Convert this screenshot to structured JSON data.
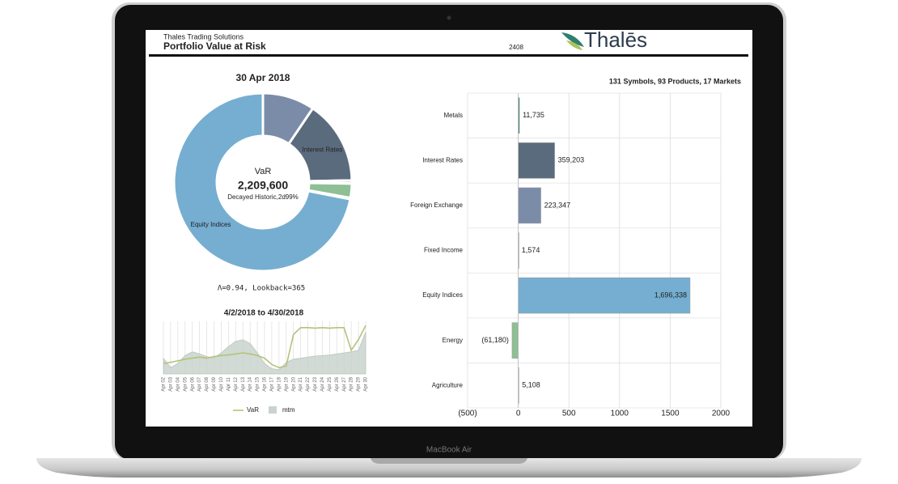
{
  "header": {
    "company": "Thales Trading Solutions",
    "title": "Portfolio Value at Risk",
    "code": "2408",
    "logo": "Thalēs"
  },
  "device_label": "MacBook Air",
  "chart_data": [
    {
      "type": "pie",
      "title": "30 Apr 2018",
      "center_label": "VaR",
      "center_value": "2,209,600",
      "center_note": "Decayed Historic,2d99%",
      "note": "Λ=0.94, Lookback=365",
      "categories": [
        null,
        "Interest Rates",
        null,
        null,
        null,
        null,
        "Equity Indices"
      ],
      "values": [
        223347,
        359203,
        11735,
        1574,
        61180,
        5108,
        1696338
      ],
      "colors": [
        "#7b8ca8",
        "#5b6b7e",
        "#1f9a8a",
        "#c5d3c8",
        "#8fbf95",
        "#d9e3c8",
        "#75aed1"
      ]
    },
    {
      "type": "line",
      "title": "4/2/2018 to 4/30/2018",
      "categories": [
        "Apr 02",
        "Apr 03",
        "Apr 04",
        "Apr 05",
        "Apr 06",
        "Apr 07",
        "Apr 08",
        "Apr 09",
        "Apr 10",
        "Apr 11",
        "Apr 12",
        "Apr 13",
        "Apr 14",
        "Apr 15",
        "Apr 16",
        "Apr 17",
        "Apr 18",
        "Apr 19",
        "Apr 20",
        "Apr 21",
        "Apr 22",
        "Apr 23",
        "Apr 24",
        "Apr 25",
        "Apr 26",
        "Apr 27",
        "Apr 28",
        "Apr 29",
        "Apr 30"
      ],
      "ylim": [
        0,
        100
      ],
      "grid": true,
      "series": [
        {
          "name": "VaR",
          "color": "#b5c27a",
          "style": "line",
          "values": [
            20,
            22,
            25,
            28,
            30,
            32,
            30,
            33,
            35,
            36,
            38,
            40,
            38,
            35,
            30,
            18,
            12,
            15,
            75,
            88,
            88,
            87,
            88,
            87,
            88,
            88,
            45,
            65,
            92
          ]
        },
        {
          "name": "mtm",
          "color": "#c9d4cd",
          "style": "area",
          "values": [
            30,
            12,
            20,
            35,
            42,
            38,
            33,
            30,
            40,
            52,
            62,
            65,
            58,
            40,
            20,
            10,
            8,
            22,
            28,
            30,
            32,
            34,
            35,
            36,
            38,
            40,
            42,
            45,
            80
          ]
        }
      ]
    },
    {
      "type": "bar",
      "orientation": "horizontal",
      "subtitle": "131 Symbols, 93 Products, 17 Markets",
      "categories": [
        "Metals",
        "Interest Rates",
        "Foreign Exchange",
        "Fixed Income",
        "Equity Indices",
        "Energy",
        "Agriculture"
      ],
      "values": [
        11.735,
        359.203,
        223.347,
        1.574,
        1696.338,
        -61.18,
        5.108
      ],
      "value_labels": [
        "11,735",
        "359,203",
        "223,347",
        "1,574",
        "1,696,338",
        "(61,180)",
        "5,108"
      ],
      "colors": [
        "#3d8a78",
        "#5b6b7e",
        "#7b8ca8",
        "#c5d3c8",
        "#75aed1",
        "#8fbf95",
        "#d9e3c8"
      ],
      "xlim": [
        -500,
        2000
      ],
      "xticks": [
        {
          "value": -500,
          "label": "(500)"
        },
        0,
        500,
        1000,
        1500,
        2000
      ],
      "grid": true
    }
  ]
}
